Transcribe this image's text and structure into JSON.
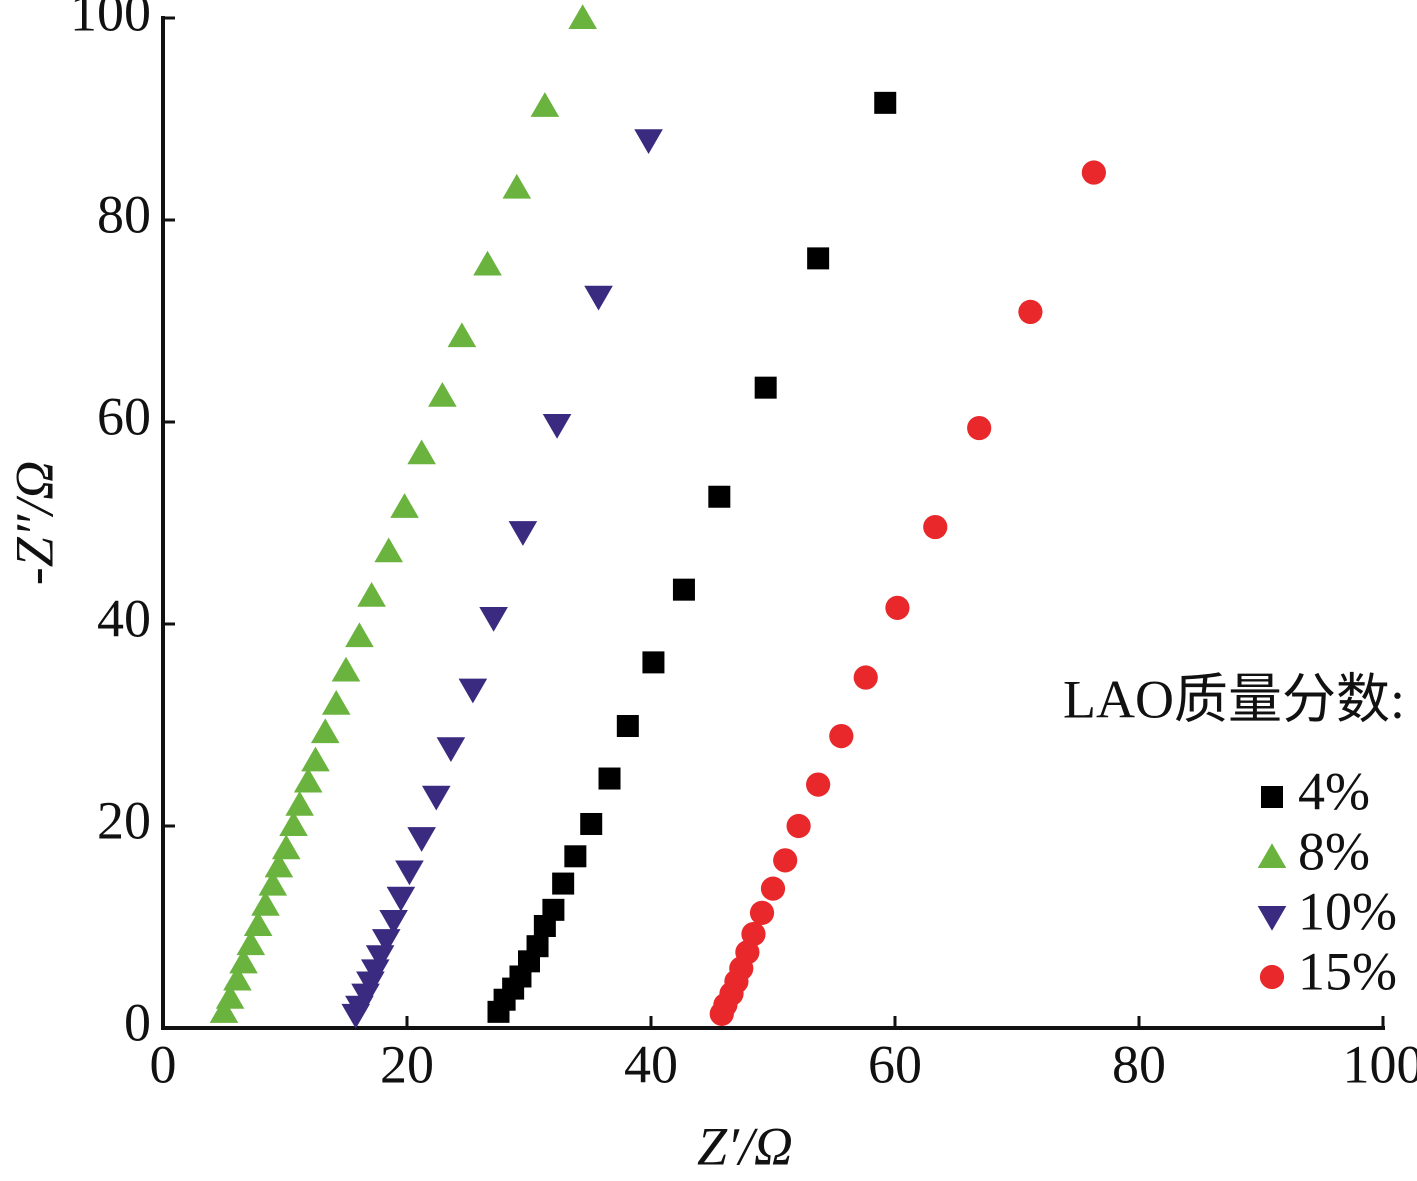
{
  "chart_data": {
    "type": "scatter",
    "xlabel": "Z′/Ω",
    "ylabel": "-Z″/Ω",
    "legend_title": "LAO质量分数:",
    "legend": "lower right",
    "xlim": [
      0,
      100
    ],
    "ylim": [
      0,
      100
    ],
    "xticks": [
      0,
      20,
      40,
      60,
      80,
      100
    ],
    "yticks": [
      0,
      20,
      40,
      60,
      80,
      100
    ],
    "series": [
      {
        "name": "4%",
        "color": "#000000",
        "marker": "square",
        "x": [
          59.2,
          53.7,
          49.4,
          45.6,
          42.7,
          40.2,
          38.1,
          36.6,
          35.1,
          33.8,
          32.8,
          32.0,
          31.3,
          30.7,
          30.0,
          29.3,
          28.7,
          28.0,
          27.5
        ],
        "values": [
          91.6,
          76.2,
          63.4,
          52.6,
          43.4,
          36.2,
          29.9,
          24.7,
          20.2,
          17.0,
          14.3,
          11.7,
          10.1,
          8.1,
          6.6,
          5.1,
          3.9,
          2.8,
          1.6
        ]
      },
      {
        "name": "8%",
        "color": "#6ab33e",
        "marker": "triangle-up",
        "x": [
          34.4,
          31.3,
          29.0,
          26.6,
          24.5,
          22.9,
          21.2,
          19.8,
          18.5,
          17.1,
          16.1,
          15.0,
          14.2,
          13.3,
          12.5,
          11.9,
          11.2,
          10.7,
          10.1,
          9.5,
          9.0,
          8.4,
          7.8,
          7.2,
          6.6,
          6.1,
          5.5,
          5.0
        ],
        "values": [
          100,
          91.3,
          83.2,
          75.6,
          68.5,
          62.6,
          56.9,
          51.6,
          47.2,
          42.8,
          38.8,
          35.4,
          32.1,
          29.3,
          26.5,
          24.4,
          22.1,
          20.1,
          17.8,
          16.0,
          14.2,
          12.2,
          10.2,
          8.3,
          6.5,
          4.8,
          3.0,
          1.6
        ]
      },
      {
        "name": "10%",
        "color": "#3a2a80",
        "marker": "triangle-down",
        "x": [
          39.8,
          35.7,
          32.3,
          29.5,
          27.1,
          25.4,
          23.6,
          22.4,
          21.2,
          20.2,
          19.5,
          18.9,
          18.3,
          17.8,
          17.4,
          17.0,
          16.6,
          16.1,
          15.8
        ],
        "values": [
          87.9,
          72.4,
          59.7,
          49.1,
          40.6,
          33.5,
          27.7,
          22.9,
          18.8,
          15.5,
          12.9,
          10.6,
          8.7,
          7.1,
          5.7,
          4.5,
          3.3,
          2.1,
          1.3
        ]
      },
      {
        "name": "15%",
        "color": "#e8282b",
        "marker": "circle",
        "x": [
          76.3,
          71.1,
          66.9,
          63.3,
          60.2,
          57.6,
          55.6,
          53.7,
          52.1,
          51.0,
          50.0,
          49.1,
          48.4,
          47.9,
          47.4,
          47.0,
          46.6,
          46.1,
          45.8
        ],
        "values": [
          84.7,
          70.9,
          59.4,
          49.6,
          41.6,
          34.7,
          28.9,
          24.1,
          20.0,
          16.6,
          13.8,
          11.4,
          9.3,
          7.5,
          5.9,
          4.6,
          3.4,
          2.3,
          1.4
        ]
      }
    ]
  }
}
